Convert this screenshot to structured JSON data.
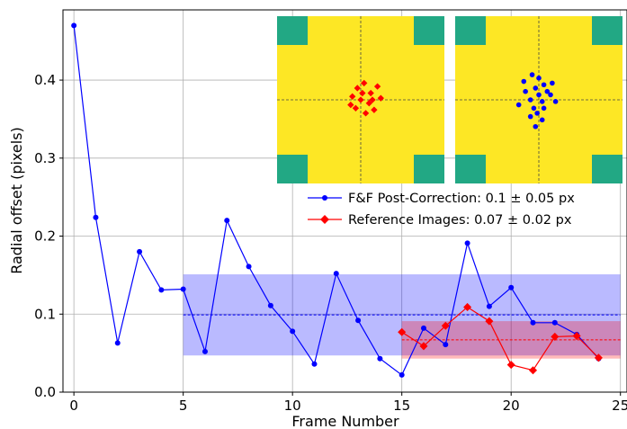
{
  "chart_data": {
    "type": "line",
    "title": "",
    "xlabel": "Frame Number",
    "ylabel": "Radial offset (pixels)",
    "xlim": [
      -0.5,
      25.3
    ],
    "ylim": [
      0.0,
      0.49
    ],
    "xticks": [
      0,
      5,
      10,
      15,
      20,
      25
    ],
    "yticks": [
      0.0,
      0.1,
      0.2,
      0.3,
      0.4
    ],
    "xtick_labels": [
      "0",
      "5",
      "10",
      "15",
      "20",
      "25"
    ],
    "ytick_labels": [
      "0.0",
      "0.1",
      "0.2",
      "0.3",
      "0.4"
    ],
    "grid": true,
    "legend_position": "right, below insets",
    "series": [
      {
        "name": "F&F Post-Correction: 0.1 ± 0.05 px",
        "color": "#0000ff",
        "marker": "circle",
        "x": [
          0,
          1,
          2,
          3,
          4,
          5,
          6,
          7,
          8,
          9,
          10,
          11,
          12,
          13,
          14,
          15,
          16,
          17,
          18,
          19,
          20,
          21,
          22,
          23,
          24
        ],
        "values": [
          0.47,
          0.224,
          0.063,
          0.18,
          0.131,
          0.132,
          0.052,
          0.22,
          0.161,
          0.111,
          0.078,
          0.036,
          0.152,
          0.092,
          0.043,
          0.022,
          0.082,
          0.061,
          0.191,
          0.11,
          0.134,
          0.089,
          0.089,
          0.074,
          0.043
        ]
      },
      {
        "name": "Reference Images: 0.07 ± 0.02 px",
        "color": "#ff0000",
        "marker": "diamond",
        "x": [
          15,
          16,
          17,
          18,
          19,
          20,
          21,
          22,
          23,
          24
        ],
        "values": [
          0.077,
          0.059,
          0.085,
          0.109,
          0.091,
          0.035,
          0.028,
          0.071,
          0.072,
          0.044
        ]
      }
    ],
    "bands": [
      {
        "x_range": [
          5,
          25
        ],
        "mean": 0.099,
        "low": 0.047,
        "high": 0.151,
        "color": "#0000ff"
      },
      {
        "x_range": [
          15,
          25
        ],
        "mean": 0.067,
        "low": 0.043,
        "high": 0.091,
        "color": "#ff0000"
      }
    ],
    "insets": [
      {
        "color_marker": "#ff0000",
        "marker": "diamond",
        "points": [
          [
            0.48,
            0.43
          ],
          [
            0.52,
            0.4
          ],
          [
            0.56,
            0.46
          ],
          [
            0.6,
            0.42
          ],
          [
            0.45,
            0.48
          ],
          [
            0.5,
            0.5
          ],
          [
            0.55,
            0.52
          ],
          [
            0.62,
            0.49
          ],
          [
            0.47,
            0.55
          ],
          [
            0.53,
            0.58
          ],
          [
            0.58,
            0.56
          ],
          [
            0.44,
            0.53
          ],
          [
            0.51,
            0.46
          ],
          [
            0.57,
            0.5
          ]
        ]
      },
      {
        "color_marker": "#0000ff",
        "marker": "circle",
        "points": [
          [
            0.46,
            0.35
          ],
          [
            0.5,
            0.37
          ],
          [
            0.53,
            0.41
          ],
          [
            0.48,
            0.43
          ],
          [
            0.55,
            0.45
          ],
          [
            0.42,
            0.45
          ],
          [
            0.5,
            0.47
          ],
          [
            0.57,
            0.47
          ],
          [
            0.45,
            0.5
          ],
          [
            0.52,
            0.51
          ],
          [
            0.6,
            0.51
          ],
          [
            0.38,
            0.53
          ],
          [
            0.47,
            0.55
          ],
          [
            0.53,
            0.55
          ],
          [
            0.49,
            0.58
          ],
          [
            0.45,
            0.6
          ],
          [
            0.52,
            0.62
          ],
          [
            0.48,
            0.66
          ],
          [
            0.41,
            0.39
          ],
          [
            0.58,
            0.4
          ]
        ]
      }
    ]
  }
}
